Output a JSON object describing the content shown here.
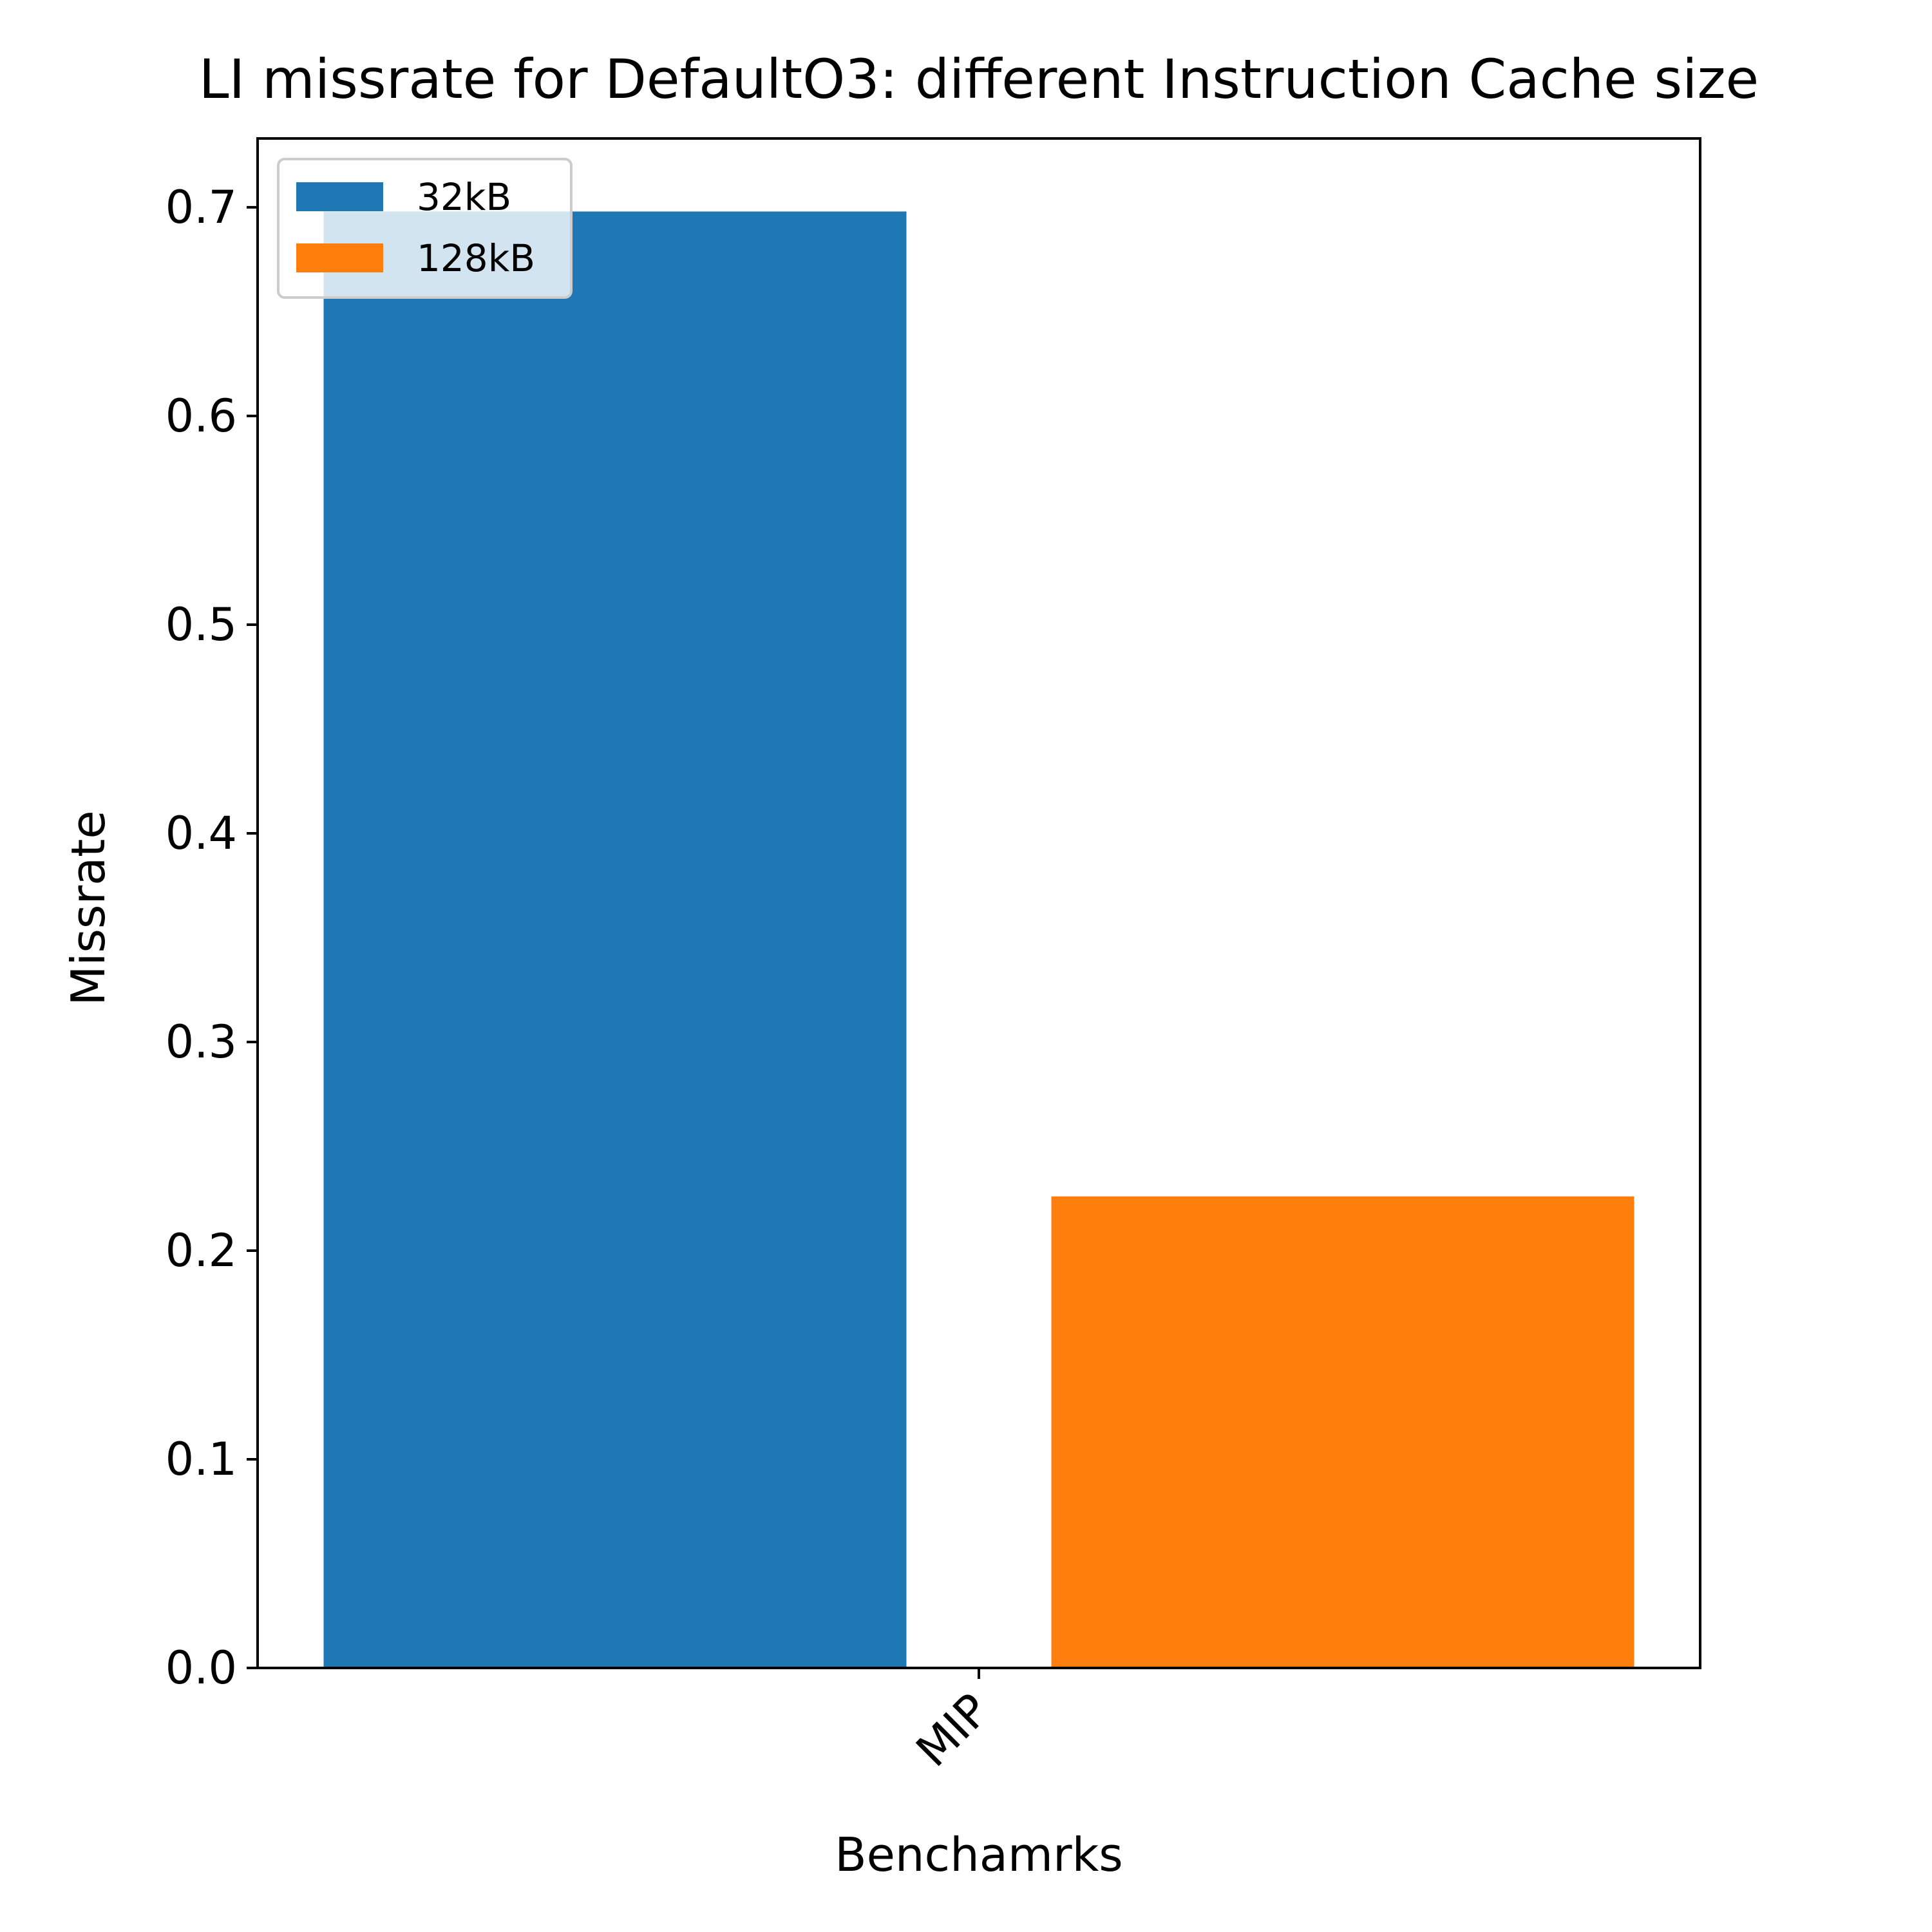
{
  "chart_data": {
    "type": "bar",
    "title": "LI missrate for DefaultO3: different Instruction Cache size",
    "xlabel": "Benchamrks",
    "ylabel": "Missrate",
    "categories": [
      "MIP"
    ],
    "series": [
      {
        "name": "32kB",
        "values": [
          0.698
        ],
        "color": "#1f77b4"
      },
      {
        "name": "128kB",
        "values": [
          0.226
        ],
        "color": "#ff7f0e"
      }
    ],
    "ylim": [
      0,
      0.733
    ],
    "yticks": [
      "0.0",
      "0.1",
      "0.2",
      "0.3",
      "0.4",
      "0.5",
      "0.6",
      "0.7"
    ],
    "ytick_values": [
      0,
      0.1,
      0.2,
      0.3,
      0.4,
      0.5,
      0.6,
      0.7
    ],
    "legend": "top-left",
    "grid": false
  }
}
